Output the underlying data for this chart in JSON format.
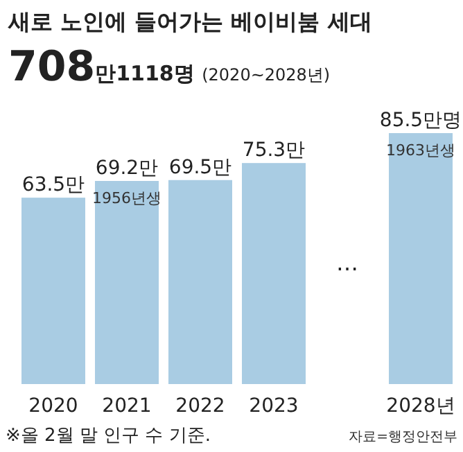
{
  "chart_data": {
    "type": "bar",
    "title": "새로 노인에 들어가는 베이비붐 세대",
    "subtitle": "708만1118명 (2020~2028년)",
    "categories": [
      "2020",
      "2021",
      "2022",
      "2023",
      null,
      "2028년"
    ],
    "values": [
      63.5,
      69.2,
      69.5,
      75.3,
      null,
      85.5
    ],
    "value_labels": [
      "63.5만",
      "69.2만",
      "69.5만",
      "75.3만",
      null,
      "85.5만명"
    ],
    "color": "#a9cce3",
    "annotations": [
      {
        "text": "1956년생",
        "x": "2021",
        "y": 69.2
      },
      {
        "text": "1963년생",
        "x": "2028년",
        "y": 85.5
      },
      "…",
      "※올 2월 말 인구 수 기준.",
      "자료=행정안전부"
    ]
  }
}
